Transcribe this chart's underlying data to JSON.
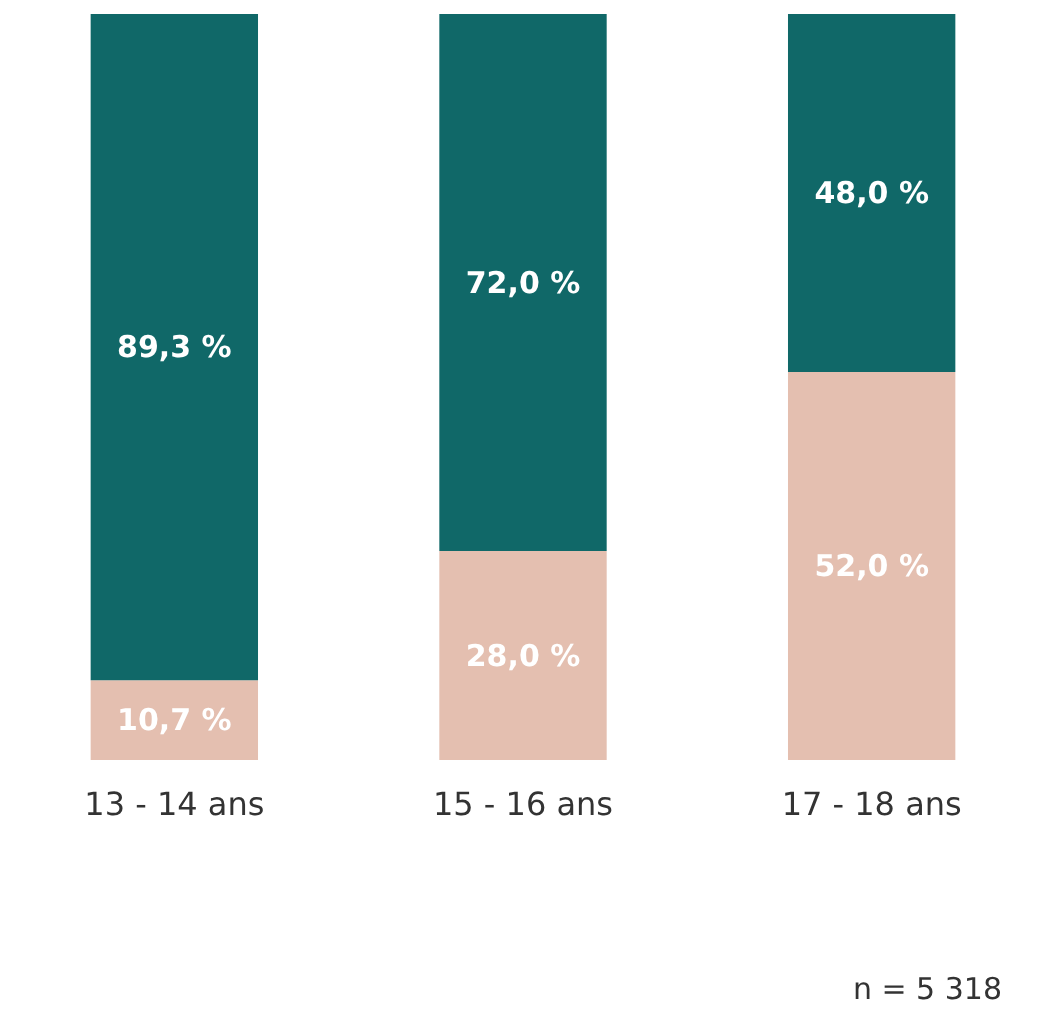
{
  "chart_data": {
    "type": "bar",
    "stacked": true,
    "categories": [
      "13 - 14 ans",
      "15 - 16 ans",
      "17 - 18 ans"
    ],
    "series": [
      {
        "color": "#e4bfb0",
        "values": [
          10.7,
          28.0,
          52.0
        ],
        "value_labels": [
          "10,7 %",
          "28,0 %",
          "52,0 %"
        ]
      },
      {
        "color": "#106868",
        "values": [
          89.3,
          72.0,
          48.0
        ],
        "value_labels": [
          "89,3 %",
          "72,0 %",
          "48,0 %"
        ]
      }
    ],
    "ylim": [
      0,
      100
    ],
    "tick_labels": "x",
    "annotations": [
      "n = 5 318"
    ]
  }
}
